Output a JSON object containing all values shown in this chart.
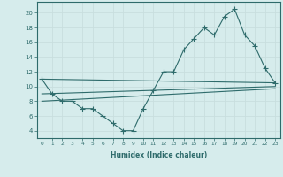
{
  "xlabel": "Humidex (Indice chaleur)",
  "background_color": "#d6ecec",
  "grid_color": "#b8d8d8",
  "line_color": "#2e6b6b",
  "xlim": [
    -0.5,
    23.5
  ],
  "ylim": [
    3.0,
    21.5
  ],
  "xticks": [
    0,
    1,
    2,
    3,
    4,
    5,
    6,
    7,
    8,
    9,
    10,
    11,
    12,
    13,
    14,
    15,
    16,
    17,
    18,
    19,
    20,
    21,
    22,
    23
  ],
  "yticks": [
    4,
    6,
    8,
    10,
    12,
    14,
    16,
    18,
    20
  ],
  "curve_x": [
    0,
    1,
    2,
    3,
    4,
    5,
    6,
    7,
    8,
    9,
    10,
    11,
    12,
    13,
    14,
    15,
    16,
    17,
    18,
    19,
    20,
    21,
    22,
    23
  ],
  "curve_y": [
    11,
    9,
    8,
    8,
    7,
    7,
    6,
    5,
    4,
    4,
    7,
    9.5,
    12,
    12,
    15,
    16.5,
    18,
    17,
    19.5,
    20.5,
    17,
    15.5,
    12.5,
    10.5
  ],
  "line1_x": [
    0,
    23
  ],
  "line1_y": [
    11,
    10.5
  ],
  "line2_x": [
    0,
    23
  ],
  "line2_y": [
    9,
    10.0
  ],
  "line3_x": [
    0,
    23
  ],
  "line3_y": [
    8,
    9.7
  ]
}
